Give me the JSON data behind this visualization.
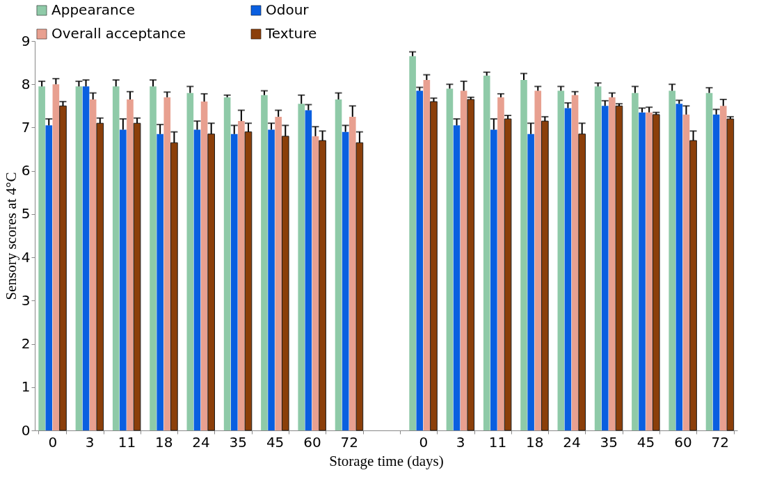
{
  "chart_data": {
    "type": "bar",
    "xlabel": "Storage time (days)",
    "ylabel": "Sensory scores at 4°C",
    "categories": [
      "0",
      "3",
      "11",
      "18",
      "24",
      "35",
      "45",
      "60",
      "72",
      null,
      "0",
      "3",
      "11",
      "18",
      "24",
      "35",
      "45",
      "60",
      "72"
    ],
    "ylim": [
      0,
      9
    ],
    "yticks": [
      0,
      1,
      2,
      3,
      4,
      5,
      6,
      7,
      8,
      9
    ],
    "legend": "top",
    "series": [
      {
        "name": "Appearance",
        "color": "#8fcaa8",
        "values": [
          7.95,
          7.95,
          7.95,
          7.95,
          7.8,
          7.7,
          7.75,
          7.55,
          7.65,
          null,
          8.65,
          7.9,
          8.2,
          8.1,
          7.85,
          7.95,
          7.8,
          7.85,
          7.8
        ],
        "errors": [
          [
            7.95,
            8.07
          ],
          [
            7.95,
            8.07
          ],
          [
            7.95,
            8.1
          ],
          [
            7.95,
            8.1
          ],
          [
            7.8,
            7.95
          ],
          [
            7.7,
            7.75
          ],
          [
            7.75,
            7.85
          ],
          [
            7.55,
            7.75
          ],
          [
            7.65,
            7.8
          ],
          null,
          [
            8.65,
            8.75
          ],
          [
            7.9,
            8.0
          ],
          [
            8.2,
            8.28
          ],
          [
            8.1,
            8.25
          ],
          [
            7.85,
            7.95
          ],
          [
            7.95,
            8.03
          ],
          [
            7.8,
            7.95
          ],
          [
            7.85,
            8.0
          ],
          [
            7.8,
            7.92
          ]
        ]
      },
      {
        "name": "Odour",
        "color": "#0a5fe0",
        "values": [
          7.05,
          7.95,
          6.95,
          6.85,
          6.95,
          6.85,
          6.95,
          7.4,
          6.9,
          null,
          7.85,
          7.05,
          6.95,
          6.85,
          7.45,
          7.5,
          7.35,
          7.55,
          7.3
        ],
        "errors": [
          [
            7.05,
            7.2
          ],
          [
            7.95,
            8.1
          ],
          [
            6.95,
            7.2
          ],
          [
            6.85,
            7.07
          ],
          [
            6.95,
            7.15
          ],
          [
            6.85,
            7.05
          ],
          [
            6.95,
            7.1
          ],
          [
            7.4,
            7.53
          ],
          [
            6.9,
            7.05
          ],
          null,
          [
            7.85,
            7.93
          ],
          [
            7.05,
            7.2
          ],
          [
            6.95,
            7.2
          ],
          [
            6.85,
            7.1
          ],
          [
            7.45,
            7.57
          ],
          [
            7.5,
            7.62
          ],
          [
            7.35,
            7.45
          ],
          [
            7.55,
            7.63
          ],
          [
            7.3,
            7.42
          ]
        ]
      },
      {
        "name": "Overall acceptance",
        "color": "#e8a090",
        "values": [
          8.0,
          7.65,
          7.65,
          7.7,
          7.6,
          7.15,
          7.25,
          6.8,
          7.25,
          null,
          8.1,
          7.85,
          7.7,
          7.85,
          7.75,
          7.7,
          7.35,
          7.3,
          7.5
        ],
        "errors": [
          [
            8.0,
            8.13
          ],
          [
            7.65,
            7.8
          ],
          [
            7.65,
            7.83
          ],
          [
            7.7,
            7.82
          ],
          [
            7.6,
            7.78
          ],
          [
            7.15,
            7.4
          ],
          [
            7.25,
            7.4
          ],
          [
            6.8,
            7.02
          ],
          [
            7.25,
            7.5
          ],
          null,
          [
            8.1,
            8.22
          ],
          [
            7.85,
            8.07
          ],
          [
            7.7,
            7.78
          ],
          [
            7.85,
            7.95
          ],
          [
            7.75,
            7.83
          ],
          [
            7.7,
            7.8
          ],
          [
            7.35,
            7.47
          ],
          [
            7.3,
            7.5
          ],
          [
            7.5,
            7.65
          ]
        ]
      },
      {
        "name": "Texture",
        "color": "#8b3f0a",
        "values": [
          7.5,
          7.1,
          7.1,
          6.65,
          6.85,
          6.9,
          6.8,
          6.7,
          6.65,
          null,
          7.6,
          7.65,
          7.2,
          7.15,
          6.85,
          7.5,
          7.3,
          6.7,
          7.2
        ],
        "errors": [
          [
            7.5,
            7.6
          ],
          [
            7.1,
            7.22
          ],
          [
            7.1,
            7.22
          ],
          [
            6.65,
            6.9
          ],
          [
            6.85,
            7.1
          ],
          [
            6.9,
            7.1
          ],
          [
            6.8,
            7.05
          ],
          [
            6.7,
            6.92
          ],
          [
            6.65,
            6.9
          ],
          null,
          [
            7.6,
            7.68
          ],
          [
            7.65,
            7.7
          ],
          [
            7.2,
            7.28
          ],
          [
            7.15,
            7.25
          ],
          [
            6.85,
            7.1
          ],
          [
            7.5,
            7.55
          ],
          [
            7.3,
            7.35
          ],
          [
            6.7,
            6.92
          ],
          [
            7.2,
            7.25
          ]
        ]
      }
    ]
  }
}
